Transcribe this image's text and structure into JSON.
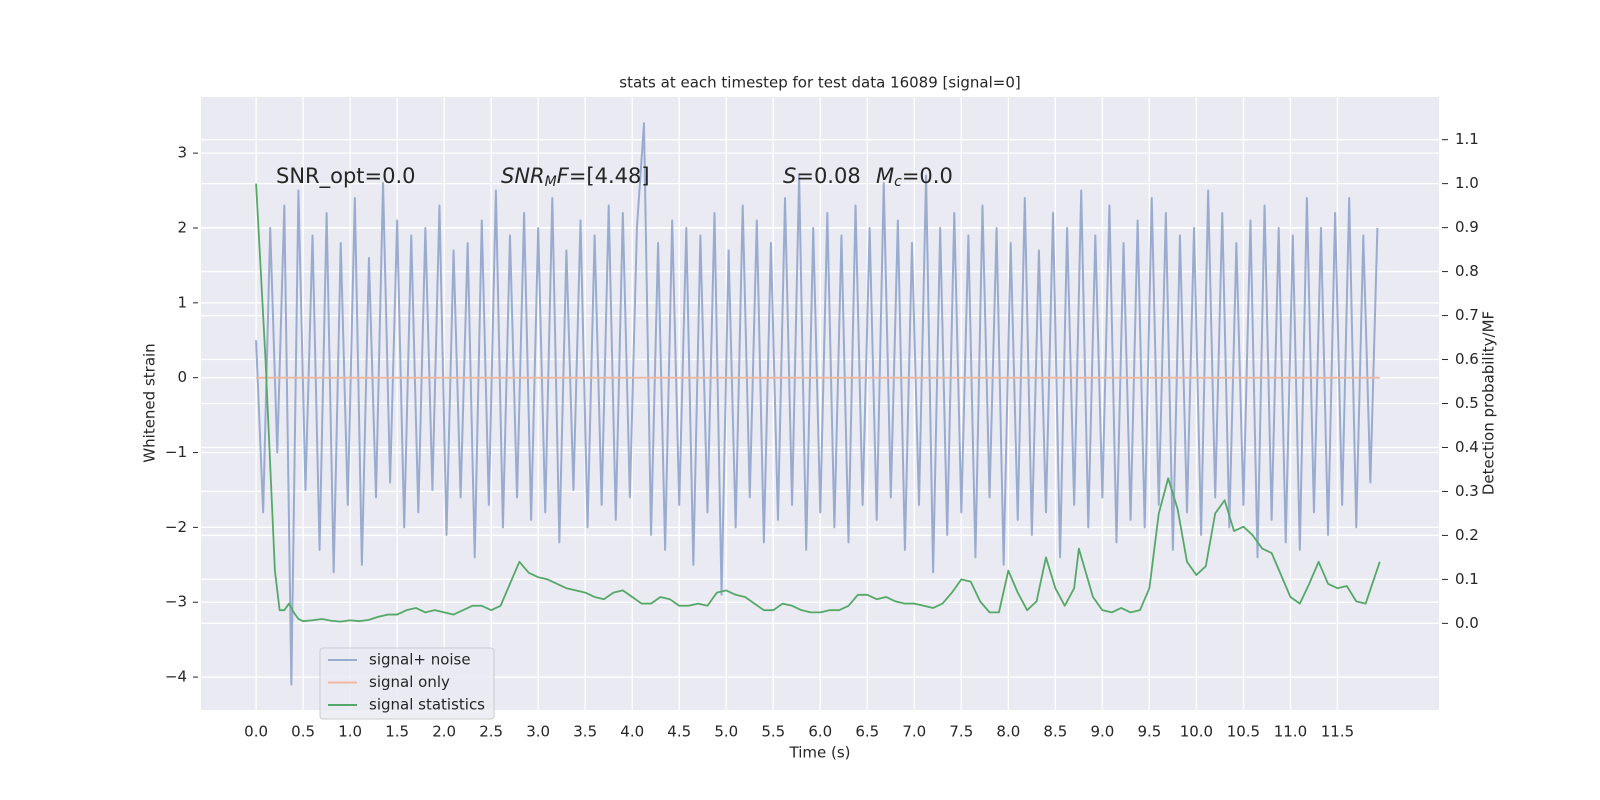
{
  "chart_data": {
    "type": "line",
    "title": "stats at each timestep for test data 16089 [signal=0]",
    "x_label": "Time (s)",
    "y_label": "Whitened strain",
    "y2_label": "Detection probability/MF",
    "annotations": [
      [
        "SNR_opt=0.0"
      ],
      [
        "SNR",
        "M",
        "F=[4.48]"
      ],
      [
        "S",
        "=0.08"
      ],
      [
        "M",
        "c",
        "=0.0"
      ]
    ],
    "grid": true,
    "legend": "lower left",
    "xlim": [
      -0.586,
      12.58
    ],
    "ylim": [
      -4.44,
      3.75
    ],
    "y2lim": [
      -0.197,
      1.197
    ],
    "xticks": [
      {
        "value": 0,
        "label": "0.0"
      },
      0.5,
      {
        "value": 1,
        "label": "1.0"
      },
      1.5,
      {
        "value": 2,
        "label": "2.0"
      },
      2.5,
      {
        "value": 3,
        "label": "3.0"
      },
      3.5,
      {
        "value": 4,
        "label": "4.0"
      },
      4.5,
      {
        "value": 5,
        "label": "5.0"
      },
      5.5,
      {
        "value": 6,
        "label": "6.0"
      },
      6.5,
      {
        "value": 7,
        "label": "7.0"
      },
      7.5,
      {
        "value": 8,
        "label": "8.0"
      },
      8.5,
      {
        "value": 9,
        "label": "9.0"
      },
      9.5,
      {
        "value": 10,
        "label": "10.0"
      },
      10.5,
      {
        "value": 11,
        "label": "11.0"
      },
      11.5
    ],
    "yticks": [
      {
        "value": -4,
        "label": "−4"
      },
      {
        "value": -3,
        "label": "−3"
      },
      {
        "value": -2,
        "label": "−2"
      },
      {
        "value": -1,
        "label": "−1"
      },
      0,
      1,
      2,
      3
    ],
    "y2ticks": [
      {
        "value": 0,
        "label": "0.0"
      },
      0.1,
      0.2,
      0.3,
      0.4,
      0.5,
      0.6,
      0.7,
      0.8,
      0.9,
      {
        "value": 1,
        "label": "1.0"
      },
      1.1
    ],
    "series": [
      {
        "name": "signal+ noise",
        "color": "#9aabd0",
        "x": [
          0,
          0.075,
          0.15,
          0.225,
          0.3,
          0.375,
          0.45,
          0.525,
          0.6,
          0.675,
          0.75,
          0.825,
          0.9,
          0.975,
          1.05,
          1.125,
          1.2,
          1.275,
          1.35,
          1.425,
          1.5,
          1.575,
          1.65,
          1.725,
          1.8,
          1.875,
          1.95,
          2.025,
          2.1,
          2.175,
          2.25,
          2.325,
          2.4,
          2.475,
          2.55,
          2.625,
          2.7,
          2.775,
          2.85,
          2.925,
          3.0,
          3.075,
          3.15,
          3.225,
          3.3,
          3.375,
          3.45,
          3.525,
          3.6,
          3.675,
          3.75,
          3.825,
          3.9,
          3.975,
          4.05,
          4.125,
          4.2,
          4.275,
          4.35,
          4.425,
          4.5,
          4.575,
          4.65,
          4.725,
          4.8,
          4.875,
          4.95,
          5.025,
          5.1,
          5.175,
          5.25,
          5.325,
          5.4,
          5.475,
          5.55,
          5.625,
          5.7,
          5.775,
          5.85,
          5.925,
          6.0,
          6.075,
          6.15,
          6.225,
          6.3,
          6.375,
          6.45,
          6.525,
          6.6,
          6.675,
          6.75,
          6.825,
          6.9,
          6.975,
          7.05,
          7.125,
          7.2,
          7.275,
          7.35,
          7.425,
          7.5,
          7.575,
          7.65,
          7.725,
          7.8,
          7.875,
          7.95,
          8.025,
          8.1,
          8.175,
          8.25,
          8.325,
          8.4,
          8.475,
          8.55,
          8.625,
          8.7,
          8.775,
          8.85,
          8.925,
          9.0,
          9.075,
          9.15,
          9.225,
          9.3,
          9.375,
          9.45,
          9.525,
          9.6,
          9.675,
          9.75,
          9.825,
          9.9,
          9.975,
          10.05,
          10.125,
          10.2,
          10.275,
          10.35,
          10.425,
          10.5,
          10.575,
          10.65,
          10.725,
          10.8,
          10.875,
          10.95,
          11.025,
          11.1,
          11.175,
          11.25,
          11.325,
          11.4,
          11.475,
          11.55,
          11.625,
          11.7,
          11.775,
          11.85,
          11.925
        ],
        "values": [
          0.5,
          -1.8,
          2.0,
          -1.0,
          2.3,
          -4.1,
          2.5,
          -1.5,
          1.9,
          -2.3,
          2.2,
          -2.6,
          1.8,
          -1.7,
          2.4,
          -2.5,
          1.6,
          -1.6,
          2.6,
          -1.4,
          2.1,
          -2.0,
          1.9,
          -1.8,
          2.0,
          -1.5,
          2.3,
          -2.1,
          1.7,
          -1.6,
          1.8,
          -2.4,
          2.1,
          -1.7,
          2.5,
          -2.0,
          1.9,
          -1.6,
          2.2,
          -1.9,
          2.0,
          -1.8,
          2.4,
          -2.2,
          1.7,
          -1.5,
          2.1,
          -2.0,
          1.9,
          -1.7,
          2.3,
          -1.9,
          2.2,
          -1.6,
          2.0,
          3.4,
          -2.1,
          1.8,
          -2.3,
          2.1,
          -1.7,
          2.0,
          -2.5,
          1.9,
          -1.8,
          2.2,
          -2.9,
          1.7,
          -2.0,
          2.3,
          -1.6,
          2.1,
          -2.2,
          1.8,
          -1.9,
          2.4,
          -1.7,
          2.7,
          -2.3,
          2.0,
          -1.8,
          2.2,
          -2.0,
          1.9,
          -2.2,
          2.3,
          -1.7,
          2.0,
          -1.9,
          2.6,
          -1.6,
          2.1,
          -2.3,
          1.8,
          -1.7,
          2.7,
          -2.6,
          2.0,
          -2.1,
          2.2,
          -1.8,
          1.9,
          -2.4,
          2.3,
          -1.6,
          2.0,
          -2.5,
          1.8,
          -1.9,
          2.4,
          -2.1,
          1.7,
          -1.8,
          2.2,
          -2.4,
          2.0,
          -1.7,
          2.5,
          -2.0,
          1.9,
          -1.6,
          2.3,
          -2.2,
          1.8,
          -1.9,
          2.1,
          -2.0,
          2.4,
          -1.7,
          2.2,
          -2.3,
          1.9,
          -1.8,
          2.0,
          -2.1,
          2.5,
          -1.6,
          2.2,
          -2.0,
          1.8,
          -1.7,
          2.1,
          -2.4,
          2.3,
          -1.9,
          2.0,
          -2.2,
          1.9,
          -2.3,
          2.4,
          -1.8,
          2.0,
          -2.1,
          2.2,
          -1.7,
          2.4,
          -2.0,
          1.9,
          -1.4,
          2.0
        ]
      },
      {
        "name": "signal only",
        "color": "#eeb9a0",
        "x": [
          0,
          11.95
        ],
        "values": [
          0,
          0
        ]
      },
      {
        "name": "signal statistics",
        "color": "#55a868",
        "axis": "y2",
        "x": [
          0,
          0.1,
          0.2,
          0.25,
          0.3,
          0.35,
          0.4,
          0.45,
          0.5,
          0.6,
          0.7,
          0.8,
          0.9,
          1.0,
          1.1,
          1.2,
          1.3,
          1.4,
          1.5,
          1.6,
          1.7,
          1.8,
          1.9,
          2.0,
          2.1,
          2.2,
          2.3,
          2.4,
          2.5,
          2.6,
          2.7,
          2.8,
          2.9,
          3.0,
          3.1,
          3.2,
          3.3,
          3.4,
          3.5,
          3.6,
          3.7,
          3.8,
          3.9,
          4.0,
          4.1,
          4.2,
          4.3,
          4.4,
          4.5,
          4.6,
          4.7,
          4.8,
          4.9,
          5.0,
          5.1,
          5.2,
          5.3,
          5.4,
          5.5,
          5.6,
          5.7,
          5.8,
          5.9,
          6.0,
          6.1,
          6.2,
          6.3,
          6.4,
          6.5,
          6.6,
          6.7,
          6.8,
          6.9,
          7.0,
          7.1,
          7.2,
          7.3,
          7.4,
          7.5,
          7.6,
          7.7,
          7.8,
          7.9,
          8.0,
          8.1,
          8.2,
          8.3,
          8.4,
          8.5,
          8.6,
          8.7,
          8.75,
          8.9,
          9.0,
          9.1,
          9.2,
          9.3,
          9.4,
          9.5,
          9.6,
          9.7,
          9.8,
          9.9,
          10.0,
          10.1,
          10.2,
          10.3,
          10.4,
          10.5,
          10.6,
          10.7,
          10.8,
          10.9,
          11.0,
          11.1,
          11.2,
          11.3,
          11.4,
          11.5,
          11.6,
          11.7,
          11.8,
          11.95
        ],
        "values": [
          1.0,
          0.6,
          0.12,
          0.03,
          0.03,
          0.045,
          0.025,
          0.01,
          0.005,
          0.007,
          0.01,
          0.006,
          0.004,
          0.007,
          0.005,
          0.008,
          0.015,
          0.02,
          0.02,
          0.03,
          0.035,
          0.025,
          0.03,
          0.025,
          0.02,
          0.03,
          0.04,
          0.04,
          0.03,
          0.04,
          0.09,
          0.14,
          0.115,
          0.105,
          0.1,
          0.09,
          0.08,
          0.075,
          0.07,
          0.06,
          0.055,
          0.07,
          0.075,
          0.06,
          0.045,
          0.045,
          0.06,
          0.055,
          0.04,
          0.04,
          0.045,
          0.04,
          0.07,
          0.075,
          0.065,
          0.06,
          0.045,
          0.03,
          0.03,
          0.045,
          0.04,
          0.03,
          0.025,
          0.025,
          0.03,
          0.03,
          0.04,
          0.065,
          0.065,
          0.055,
          0.06,
          0.05,
          0.045,
          0.045,
          0.04,
          0.035,
          0.045,
          0.07,
          0.1,
          0.095,
          0.05,
          0.025,
          0.025,
          0.12,
          0.07,
          0.03,
          0.05,
          0.15,
          0.08,
          0.04,
          0.08,
          0.17,
          0.06,
          0.03,
          0.025,
          0.035,
          0.025,
          0.03,
          0.08,
          0.25,
          0.33,
          0.26,
          0.14,
          0.11,
          0.13,
          0.25,
          0.28,
          0.21,
          0.22,
          0.2,
          0.17,
          0.16,
          0.11,
          0.06,
          0.045,
          0.09,
          0.14,
          0.09,
          0.08,
          0.085,
          0.05,
          0.045,
          0.14
        ]
      }
    ]
  }
}
